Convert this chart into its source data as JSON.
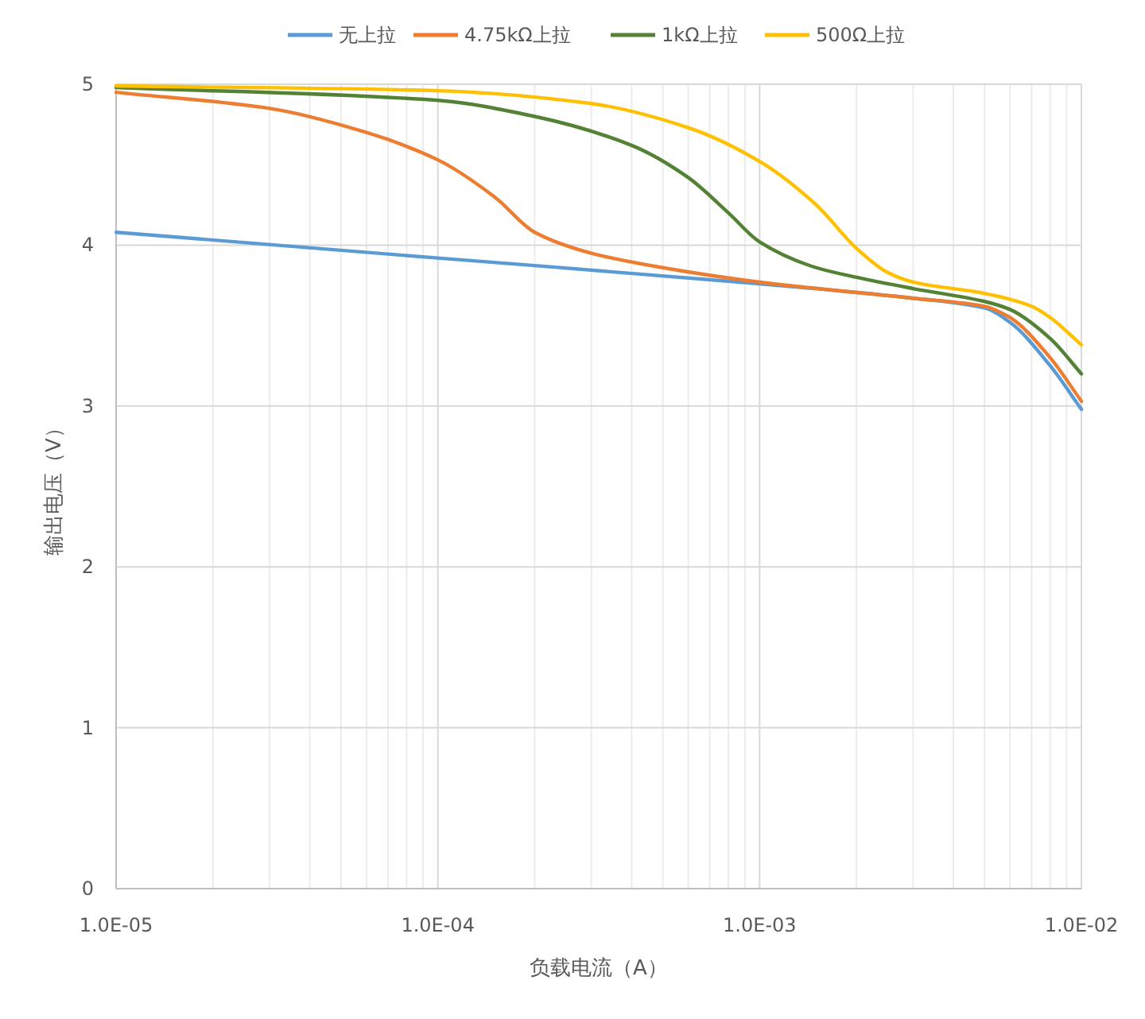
{
  "chart_data": {
    "type": "line",
    "xlabel": "负载电流（A）",
    "ylabel": "输出电压（V）",
    "log": "x",
    "grid": true,
    "legend": "top",
    "line_style": "solid",
    "marker": "none",
    "xlim": [
      1e-05,
      0.01
    ],
    "xticks": [
      {
        "value": 1e-05,
        "label": "1.0E-05"
      },
      {
        "value": 0.0001,
        "label": "1.0E-04"
      },
      {
        "value": 0.001,
        "label": "1.0E-03"
      },
      {
        "value": 0.01,
        "label": "1.0E-02"
      }
    ],
    "ylim": [
      0,
      5
    ],
    "yticks": [
      0,
      1,
      2,
      3,
      4,
      5
    ],
    "series": [
      {
        "name": "无上拉",
        "color": "#5b9bd5",
        "x": [
          1e-05,
          0.0001,
          0.001,
          0.003,
          0.005,
          0.006,
          0.008,
          0.01
        ],
        "values": [
          4.08,
          3.92,
          3.76,
          3.67,
          3.61,
          3.52,
          3.25,
          2.98
        ]
      },
      {
        "name": "4.75kΩ上拉",
        "color": "#ed7d31",
        "x": [
          1e-05,
          3e-05,
          6e-05,
          0.0001,
          0.00015,
          0.0002,
          0.0003,
          0.0005,
          0.001,
          0.003,
          0.005,
          0.006,
          0.008,
          0.01
        ],
        "values": [
          4.95,
          4.85,
          4.7,
          4.53,
          4.3,
          4.08,
          3.95,
          3.86,
          3.77,
          3.67,
          3.62,
          3.55,
          3.3,
          3.03
        ]
      },
      {
        "name": "1kΩ上拉",
        "color": "#548235",
        "x": [
          1e-05,
          0.0001,
          0.0002,
          0.0004,
          0.0006,
          0.0008,
          0.001,
          0.0015,
          0.002,
          0.003,
          0.005,
          0.006,
          0.008,
          0.01
        ],
        "values": [
          4.98,
          4.9,
          4.8,
          4.62,
          4.42,
          4.2,
          4.02,
          3.86,
          3.8,
          3.73,
          3.65,
          3.6,
          3.42,
          3.2
        ]
      },
      {
        "name": "500Ω上拉",
        "color": "#ffc000",
        "x": [
          1e-05,
          0.0001,
          0.0003,
          0.0006,
          0.001,
          0.0015,
          0.002,
          0.0025,
          0.003,
          0.005,
          0.007,
          0.008,
          0.01
        ],
        "values": [
          4.99,
          4.96,
          4.88,
          4.73,
          4.52,
          4.25,
          3.98,
          3.83,
          3.77,
          3.7,
          3.62,
          3.55,
          3.38
        ]
      }
    ]
  }
}
